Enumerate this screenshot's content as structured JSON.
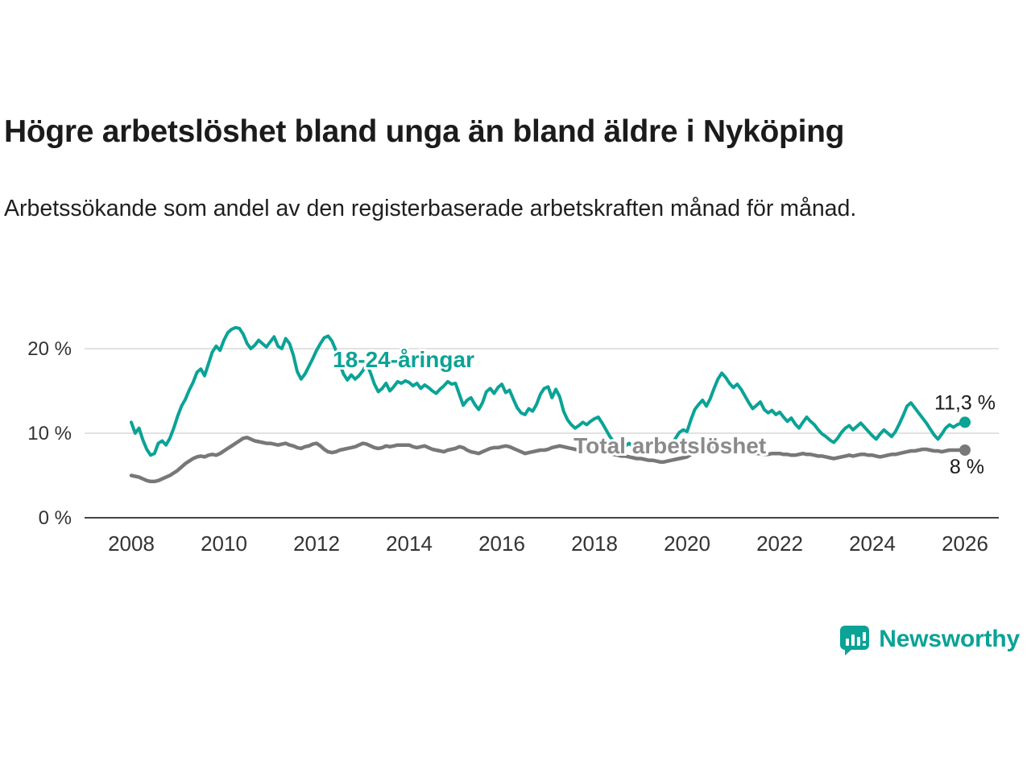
{
  "chart_data": {
    "type": "line",
    "title": "Högre arbetslöshet bland unga än bland äldre i Nyköping",
    "subtitle": "Arbetssökande som andel av den registerbaserade arbetskraften månad för månad.",
    "x_start": 2008,
    "xlim": [
      2007.2,
      2026.7
    ],
    "ylim": [
      0,
      24
    ],
    "grid": "horizontal",
    "legend_position": "inline",
    "yticks": [
      {
        "value": 0,
        "label": "0 %"
      },
      {
        "value": 10,
        "label": "10 %"
      },
      {
        "value": 20,
        "label": "20 %"
      }
    ],
    "xticks": [
      2008,
      2010,
      2012,
      2014,
      2016,
      2018,
      2020,
      2022,
      2024,
      2026
    ],
    "series": [
      {
        "name": "18-24-åringar",
        "color": "#0aa396",
        "label_color": "#0aa396",
        "width": 4,
        "start_year": 2008,
        "points_per_year": 12,
        "end_label": "11,3 %",
        "label_pos": {
          "x": 2012.35,
          "y": 17.8
        },
        "values": [
          11.3,
          10.0,
          10.6,
          9.2,
          8.1,
          7.4,
          7.6,
          8.8,
          9.1,
          8.6,
          9.4,
          10.6,
          12.0,
          13.2,
          14.0,
          15.1,
          16.0,
          17.2,
          17.6,
          16.8,
          18.2,
          19.6,
          20.3,
          19.8,
          21.0,
          21.9,
          22.3,
          22.5,
          22.4,
          21.7,
          20.6,
          20.0,
          20.4,
          21.0,
          20.6,
          20.2,
          20.8,
          21.4,
          20.3,
          20.0,
          21.2,
          20.6,
          19.2,
          17.3,
          16.4,
          17.0,
          17.9,
          18.8,
          19.8,
          20.6,
          21.3,
          21.5,
          20.9,
          19.8,
          18.2,
          17.0,
          16.3,
          16.9,
          16.4,
          16.8,
          17.4,
          18.2,
          17.1,
          15.8,
          14.9,
          15.3,
          15.9,
          15.0,
          15.5,
          16.1,
          15.9,
          16.2,
          16.0,
          15.6,
          15.9,
          15.3,
          15.7,
          15.4,
          15.0,
          14.7,
          15.2,
          15.6,
          16.1,
          15.8,
          15.9,
          14.6,
          13.3,
          13.9,
          14.2,
          13.4,
          12.8,
          13.6,
          14.9,
          15.3,
          14.7,
          15.4,
          15.8,
          14.8,
          15.1,
          14.0,
          13.0,
          12.4,
          12.2,
          12.9,
          12.6,
          13.4,
          14.6,
          15.3,
          15.5,
          14.2,
          15.2,
          14.3,
          12.6,
          11.6,
          11.0,
          10.6,
          10.9,
          11.3,
          11.0,
          11.4,
          11.7,
          11.9,
          11.2,
          10.4,
          9.6,
          9.0,
          8.6,
          8.2,
          8.5,
          8.8,
          8.4,
          8.1,
          7.8,
          8.2,
          8.6,
          8.9,
          8.5,
          8.0,
          7.6,
          8.1,
          8.7,
          9.4,
          10.1,
          10.4,
          10.2,
          11.6,
          12.8,
          13.4,
          13.9,
          13.2,
          14.1,
          15.3,
          16.4,
          17.1,
          16.6,
          15.9,
          15.4,
          15.8,
          15.2,
          14.4,
          13.6,
          12.9,
          13.3,
          13.7,
          12.8,
          12.4,
          12.7,
          12.2,
          12.5,
          11.9,
          11.4,
          11.8,
          11.1,
          10.6,
          11.3,
          11.9,
          11.4,
          11.0,
          10.4,
          9.9,
          9.6,
          9.2,
          8.9,
          9.4,
          10.1,
          10.6,
          10.9,
          10.4,
          10.8,
          11.2,
          10.7,
          10.2,
          9.7,
          9.3,
          9.9,
          10.4,
          10.0,
          9.6,
          10.2,
          11.1,
          12.1,
          13.2,
          13.6,
          13.0,
          12.4,
          11.8,
          11.2,
          10.5,
          9.8,
          9.3,
          9.9,
          10.6,
          11.0,
          10.7,
          11.0,
          11.2,
          11.3
        ]
      },
      {
        "name": "Total arbetslöshet",
        "color": "#787878",
        "label_color": "#8a8a8a",
        "width": 4.5,
        "start_year": 2008,
        "points_per_year": 12,
        "end_label": "8 %",
        "label_pos": {
          "x": 2017.55,
          "y": 7.6
        },
        "values": [
          5.0,
          4.9,
          4.8,
          4.6,
          4.4,
          4.3,
          4.3,
          4.4,
          4.6,
          4.8,
          5.0,
          5.3,
          5.6,
          6.0,
          6.4,
          6.7,
          7.0,
          7.2,
          7.3,
          7.2,
          7.4,
          7.5,
          7.4,
          7.6,
          7.9,
          8.2,
          8.5,
          8.8,
          9.1,
          9.4,
          9.5,
          9.3,
          9.1,
          9.0,
          8.9,
          8.8,
          8.8,
          8.7,
          8.6,
          8.7,
          8.8,
          8.6,
          8.5,
          8.3,
          8.2,
          8.4,
          8.5,
          8.7,
          8.8,
          8.5,
          8.1,
          7.8,
          7.7,
          7.8,
          8.0,
          8.1,
          8.2,
          8.3,
          8.4,
          8.6,
          8.8,
          8.7,
          8.5,
          8.3,
          8.2,
          8.3,
          8.5,
          8.4,
          8.5,
          8.6,
          8.6,
          8.6,
          8.6,
          8.4,
          8.3,
          8.4,
          8.5,
          8.3,
          8.1,
          8.0,
          7.9,
          7.8,
          8.0,
          8.1,
          8.2,
          8.4,
          8.3,
          8.0,
          7.8,
          7.7,
          7.6,
          7.8,
          8.0,
          8.2,
          8.3,
          8.3,
          8.4,
          8.5,
          8.4,
          8.2,
          8.0,
          7.8,
          7.6,
          7.7,
          7.8,
          7.9,
          8.0,
          8.0,
          8.1,
          8.3,
          8.4,
          8.5,
          8.4,
          8.3,
          8.2,
          8.1,
          8.0,
          8.1,
          8.0,
          8.0,
          8.0,
          7.9,
          7.8,
          7.7,
          7.6,
          7.5,
          7.4,
          7.3,
          7.3,
          7.2,
          7.1,
          7.0,
          7.0,
          6.9,
          6.8,
          6.8,
          6.7,
          6.6,
          6.6,
          6.7,
          6.8,
          6.9,
          7.0,
          7.1,
          7.2,
          7.5,
          7.8,
          8.0,
          8.2,
          8.3,
          8.3,
          8.2,
          8.1,
          8.1,
          8.0,
          8.0,
          7.9,
          7.9,
          7.8,
          7.8,
          7.7,
          7.7,
          7.6,
          7.6,
          7.5,
          7.5,
          7.6,
          7.6,
          7.6,
          7.5,
          7.5,
          7.4,
          7.4,
          7.5,
          7.6,
          7.5,
          7.5,
          7.4,
          7.3,
          7.3,
          7.2,
          7.1,
          7.0,
          7.1,
          7.2,
          7.3,
          7.4,
          7.3,
          7.4,
          7.5,
          7.5,
          7.4,
          7.4,
          7.3,
          7.2,
          7.3,
          7.4,
          7.5,
          7.5,
          7.6,
          7.7,
          7.8,
          7.9,
          7.9,
          8.0,
          8.1,
          8.1,
          8.0,
          7.9,
          7.9,
          7.8,
          7.9,
          8.0,
          8.0,
          8.0,
          8.0,
          8.0
        ]
      }
    ]
  },
  "footer": {
    "brand": "Newsworthy",
    "brand_color": "#0aa396"
  },
  "axis_colors": {
    "baseline": "#444444",
    "gridline": "#d8d8d8",
    "tick_text": "#333333"
  }
}
